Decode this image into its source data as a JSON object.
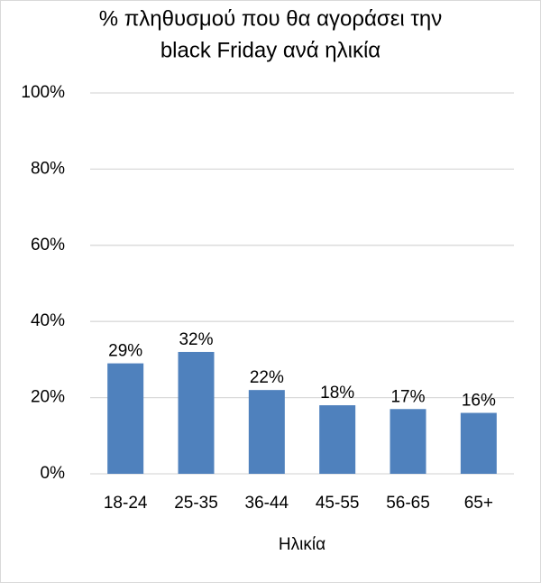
{
  "chart_data": {
    "type": "bar",
    "title": [
      "% πληθυσμού που θα αγοράσει την",
      "black Friday ανά ηλικία"
    ],
    "x_label": "Ηλικία",
    "categories": [
      "18-24",
      "25-35",
      "36-44",
      "45-55",
      "56-65",
      "65+"
    ],
    "values": [
      29,
      32,
      22,
      18,
      17,
      16
    ],
    "value_labels": [
      "29%",
      "32%",
      "22%",
      "18%",
      "17%",
      "16%"
    ],
    "color": "#4f81bd",
    "ylim": [
      0,
      100
    ],
    "yticks": [
      {
        "value": 0,
        "label": "0%"
      },
      {
        "value": 20,
        "label": "20%"
      },
      {
        "value": 40,
        "label": "40%"
      },
      {
        "value": 60,
        "label": "60%"
      },
      {
        "value": 80,
        "label": "80%"
      },
      {
        "value": 100,
        "label": "100%"
      }
    ],
    "grid": true
  }
}
